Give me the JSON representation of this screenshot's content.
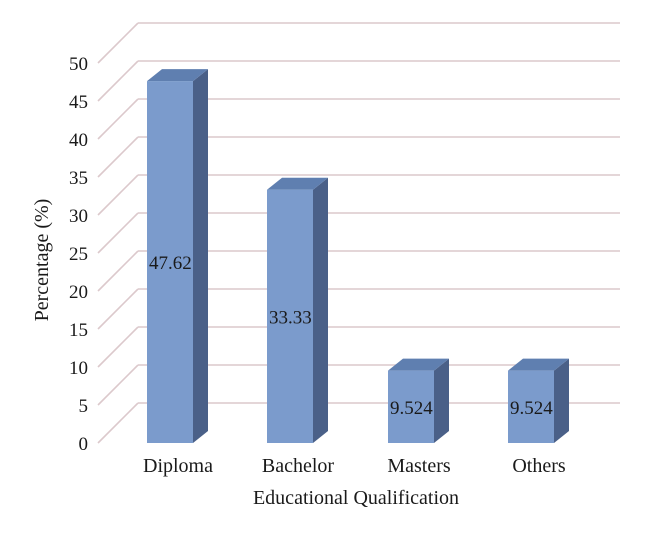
{
  "chart_data": {
    "type": "bar",
    "style": "3d-column",
    "title": "",
    "xlabel": "Educational Qualification",
    "ylabel": "Percentage (%)",
    "categories": [
      "Diploma",
      "Bachelor",
      "Masters",
      "Others"
    ],
    "values": [
      47.62,
      33.33,
      9.524,
      9.524
    ],
    "data_labels": [
      "47.62",
      "33.33",
      "9.524",
      "9.524"
    ],
    "yticks": [
      "0",
      "5",
      "10",
      "15",
      "20",
      "25",
      "30",
      "35",
      "40",
      "45",
      "50"
    ],
    "ylim": [
      0,
      50
    ],
    "grid": true,
    "legend": "none",
    "colors": {
      "bar_front": "#7b9bcc",
      "bar_side": "#4a6088",
      "bar_top": "#5f7fb0",
      "gridline": "#dcc9cc",
      "background": "#ffffff"
    }
  }
}
